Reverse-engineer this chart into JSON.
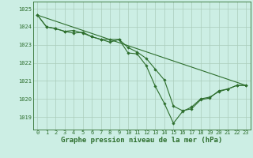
{
  "title": "Graphe pression niveau de la mer (hPa)",
  "bg_color": "#cceee4",
  "grid_color": "#aaccbb",
  "line_color": "#2d6e2d",
  "xlim": [
    -0.5,
    23.5
  ],
  "ylim": [
    1018.3,
    1025.4
  ],
  "xticks": [
    0,
    1,
    2,
    3,
    4,
    5,
    6,
    7,
    8,
    9,
    10,
    11,
    12,
    13,
    14,
    15,
    16,
    17,
    18,
    19,
    20,
    21,
    22,
    23
  ],
  "yticks": [
    1019,
    1020,
    1021,
    1022,
    1023,
    1024,
    1025
  ],
  "series": [
    {
      "x": [
        0,
        1,
        2,
        3,
        4,
        5,
        6,
        7,
        8,
        9,
        10,
        11,
        12,
        13,
        14,
        15,
        16,
        17,
        18,
        19,
        20,
        21,
        22,
        23
      ],
      "y": [
        1024.65,
        1024.0,
        1023.9,
        1023.75,
        1023.65,
        1023.7,
        1023.45,
        1023.3,
        1023.15,
        1023.3,
        1022.85,
        1022.6,
        1022.25,
        1021.65,
        1021.05,
        1019.6,
        1019.35,
        1019.45,
        1019.95,
        1020.05,
        1020.45,
        1020.55,
        1020.75,
        1020.75
      ]
    },
    {
      "x": [
        0,
        1,
        2,
        3,
        4,
        5,
        6,
        7,
        8,
        9,
        10,
        11,
        12,
        13,
        14,
        15,
        16,
        17,
        18,
        19,
        20,
        21,
        22,
        23
      ],
      "y": [
        1024.65,
        1024.0,
        1023.9,
        1023.75,
        1023.8,
        1023.65,
        1023.45,
        1023.3,
        1023.3,
        1023.3,
        1022.55,
        1022.5,
        1021.85,
        1020.7,
        1019.75,
        1018.65,
        1019.3,
        1019.55,
        1020.0,
        1020.1,
        1020.4,
        1020.55,
        1020.75,
        1020.75
      ]
    },
    {
      "x": [
        0,
        23
      ],
      "y": [
        1024.65,
        1020.75
      ],
      "no_markers": true
    }
  ],
  "title_fontsize": 6.5,
  "tick_fontsize": 5.0,
  "marker_size": 1.8,
  "line_width": 0.8
}
